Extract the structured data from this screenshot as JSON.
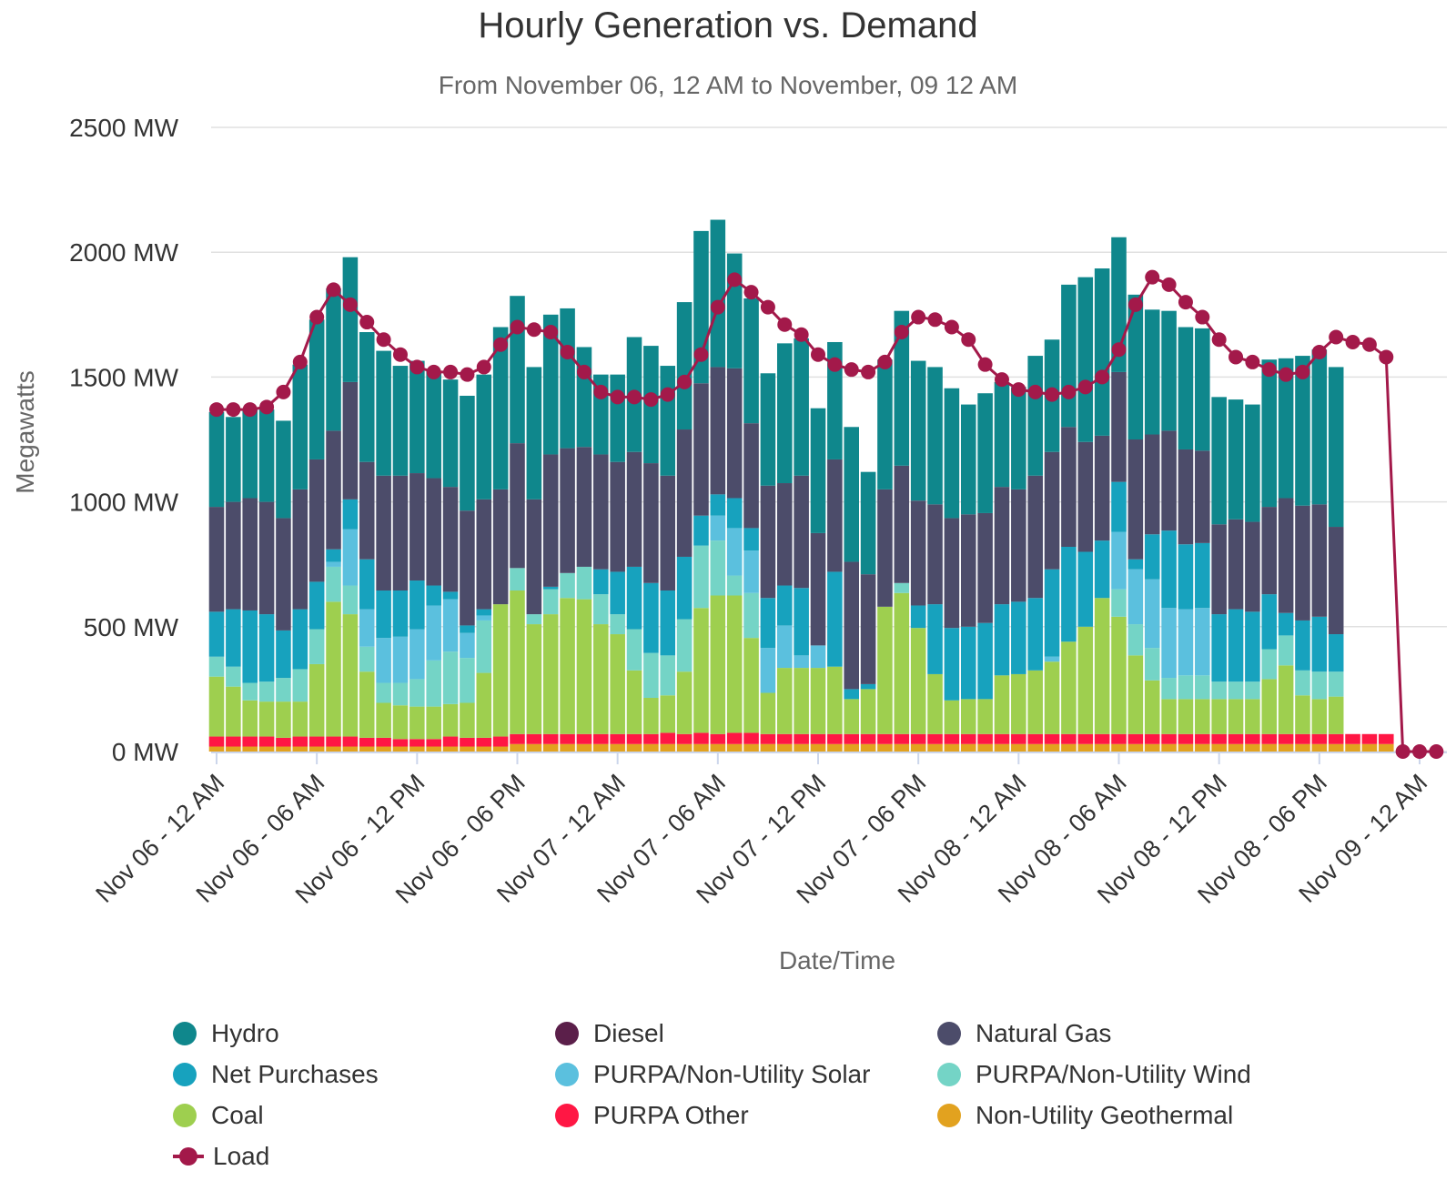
{
  "chart_data": {
    "type": "bar",
    "title": "Hourly Generation vs. Demand",
    "subtitle": "From November 06, 12 AM to November, 09 12 AM",
    "xlabel": "Date/Time",
    "ylabel": "Megawatts",
    "ylim": [
      0,
      2500
    ],
    "y_ticks": [
      "0 MW",
      "500 MW",
      "1000 MW",
      "1500 MW",
      "2000 MW",
      "2500 MW"
    ],
    "y_tick_values": [
      0,
      500,
      1000,
      1500,
      2000,
      2500
    ],
    "x_ticks": [
      "Nov 06 - 12 AM",
      "Nov 06 - 06 AM",
      "Nov 06 - 12 PM",
      "Nov 06 - 06 PM",
      "Nov 07 - 12 AM",
      "Nov 07 - 06 AM",
      "Nov 07 - 12 PM",
      "Nov 07 - 06 PM",
      "Nov 08 - 12 AM",
      "Nov 08 - 06 AM",
      "Nov 08 - 12 PM",
      "Nov 08 - 06 PM",
      "Nov 09 - 12 AM"
    ],
    "x_tick_hours": [
      0,
      6,
      12,
      18,
      24,
      30,
      36,
      42,
      48,
      54,
      60,
      66,
      72
    ],
    "grid": true,
    "legend_position": "bottom",
    "stacked": true,
    "series": [
      {
        "name": "Non-Utility Geothermal",
        "color": "#e2a21f",
        "values": [
          20,
          20,
          20,
          20,
          20,
          20,
          20,
          20,
          20,
          20,
          20,
          20,
          20,
          20,
          20,
          20,
          20,
          20,
          30,
          30,
          30,
          30,
          30,
          30,
          30,
          30,
          30,
          30,
          30,
          30,
          30,
          30,
          30,
          30,
          30,
          30,
          30,
          30,
          30,
          30,
          30,
          30,
          30,
          30,
          30,
          30,
          30,
          30,
          30,
          30,
          30,
          30,
          30,
          30,
          30,
          30,
          30,
          30,
          30,
          30,
          30,
          30,
          30,
          30,
          30,
          30,
          30,
          30,
          30,
          30,
          30
        ]
      },
      {
        "name": "PURPA Other",
        "color": "#ff1744",
        "values": [
          40,
          40,
          40,
          40,
          35,
          40,
          40,
          40,
          40,
          35,
          35,
          30,
          30,
          30,
          40,
          35,
          35,
          40,
          40,
          40,
          40,
          40,
          40,
          40,
          40,
          40,
          40,
          45,
          40,
          45,
          40,
          45,
          45,
          40,
          40,
          40,
          40,
          40,
          40,
          40,
          40,
          40,
          40,
          40,
          40,
          40,
          40,
          40,
          40,
          40,
          40,
          40,
          40,
          40,
          40,
          40,
          40,
          40,
          40,
          40,
          40,
          40,
          40,
          40,
          40,
          40,
          40,
          40,
          40,
          40,
          40
        ]
      },
      {
        "name": "Coal",
        "color": "#9ecf4f",
        "values": [
          240,
          200,
          145,
          140,
          145,
          140,
          290,
          540,
          490,
          265,
          140,
          135,
          130,
          130,
          130,
          140,
          260,
          530,
          575,
          440,
          480,
          545,
          540,
          440,
          400,
          255,
          145,
          150,
          250,
          500,
          555,
          550,
          380,
          165,
          265,
          265,
          265,
          270,
          140,
          180,
          510,
          565,
          425,
          240,
          135,
          140,
          140,
          235,
          240,
          255,
          290,
          370,
          430,
          545,
          470,
          315,
          215,
          140,
          140,
          140,
          140,
          140,
          140,
          220,
          275,
          155,
          140,
          150
        ]
      },
      {
        "name": "PURPA/Non-Utility Wind",
        "color": "#74d4c6",
        "values": [
          80,
          80,
          70,
          80,
          95,
          130,
          140,
          140,
          115,
          100,
          80,
          90,
          110,
          185,
          210,
          180,
          210,
          0,
          90,
          40,
          100,
          100,
          130,
          120,
          80,
          165,
          180,
          160,
          210,
          250,
          220,
          80,
          180,
          0,
          0,
          0,
          0,
          0,
          0,
          0,
          0,
          40,
          0,
          0,
          0,
          0,
          0,
          0,
          0,
          0,
          0,
          0,
          0,
          0,
          110,
          125,
          130,
          85,
          95,
          95,
          70,
          70,
          70,
          120,
          120,
          100,
          110,
          100
        ]
      },
      {
        "name": "PURPA/Non-Utility Solar",
        "color": "#5bc0de",
        "values": [
          0,
          0,
          0,
          0,
          0,
          0,
          0,
          20,
          225,
          150,
          180,
          185,
          200,
          220,
          210,
          100,
          20,
          0,
          0,
          0,
          0,
          0,
          0,
          0,
          0,
          0,
          0,
          0,
          0,
          0,
          100,
          190,
          170,
          180,
          170,
          50,
          90,
          0,
          0,
          0,
          0,
          0,
          0,
          0,
          0,
          0,
          0,
          0,
          0,
          0,
          20,
          0,
          0,
          0,
          230,
          220,
          275,
          280,
          265,
          270,
          0,
          0,
          0,
          0,
          0,
          0,
          0,
          0
        ]
      },
      {
        "name": "Net Purchases",
        "color": "#17a2be",
        "values": [
          180,
          230,
          290,
          270,
          190,
          240,
          190,
          50,
          120,
          200,
          190,
          185,
          195,
          80,
          30,
          30,
          25,
          0,
          0,
          0,
          10,
          0,
          0,
          100,
          170,
          250,
          280,
          260,
          250,
          120,
          85,
          120,
          90,
          200,
          160,
          270,
          0,
          380,
          40,
          20,
          0,
          0,
          90,
          280,
          290,
          290,
          305,
          285,
          290,
          290,
          350,
          380,
          300,
          230,
          200,
          40,
          180,
          310,
          260,
          260,
          270,
          290,
          280,
          220,
          90,
          200,
          220,
          150
        ]
      },
      {
        "name": "Diesel",
        "color": "#5b1f4a",
        "values": [
          0,
          0,
          0,
          0,
          0,
          0,
          0,
          0,
          0,
          0,
          0,
          0,
          0,
          0,
          0,
          0,
          0,
          0,
          0,
          0,
          0,
          0,
          0,
          0,
          0,
          0,
          0,
          0,
          0,
          0,
          0,
          0,
          0,
          0,
          0,
          0,
          0,
          0,
          0,
          0,
          0,
          0,
          0,
          0,
          0,
          0,
          0,
          0,
          0,
          0,
          0,
          0,
          0,
          0,
          0,
          0,
          0,
          0,
          0,
          0,
          0,
          0,
          0,
          0,
          0,
          0,
          0,
          0
        ]
      },
      {
        "name": "Natural Gas",
        "color": "#4c4c6a",
        "values": [
          420,
          430,
          450,
          450,
          450,
          480,
          490,
          475,
          470,
          390,
          460,
          460,
          430,
          430,
          420,
          460,
          440,
          460,
          500,
          460,
          530,
          500,
          480,
          460,
          440,
          460,
          480,
          460,
          510,
          530,
          510,
          520,
          420,
          450,
          410,
          450,
          450,
          450,
          510,
          440,
          470,
          470,
          420,
          400,
          440,
          450,
          440,
          470,
          450,
          490,
          470,
          480,
          440,
          420,
          440,
          480,
          400,
          400,
          380,
          370,
          360,
          360,
          360,
          350,
          460,
          460,
          450,
          430
        ]
      },
      {
        "name": "Hydro",
        "color": "#0f878c",
        "values": [
          380,
          340,
          360,
          370,
          390,
          500,
          560,
          570,
          500,
          520,
          500,
          440,
          450,
          430,
          430,
          460,
          500,
          650,
          590,
          530,
          560,
          560,
          400,
          320,
          350,
          460,
          470,
          440,
          510,
          610,
          590,
          460,
          500,
          450,
          560,
          550,
          500,
          470,
          540,
          410,
          520,
          620,
          560,
          550,
          520,
          440,
          480,
          420,
          410,
          480,
          450,
          570,
          660,
          670,
          540,
          580,
          500,
          480,
          490,
          490,
          510,
          480,
          470,
          590,
          560,
          600,
          620,
          640
        ]
      }
    ],
    "load": {
      "name": "Load",
      "color": "#a3194a",
      "values": [
        1370,
        1370,
        1370,
        1380,
        1440,
        1560,
        1740,
        1850,
        1790,
        1720,
        1650,
        1590,
        1540,
        1520,
        1520,
        1510,
        1540,
        1630,
        1700,
        1690,
        1680,
        1600,
        1520,
        1440,
        1420,
        1420,
        1410,
        1430,
        1480,
        1590,
        1780,
        1890,
        1840,
        1780,
        1710,
        1670,
        1590,
        1550,
        1530,
        1520,
        1560,
        1680,
        1740,
        1730,
        1700,
        1650,
        1550,
        1490,
        1450,
        1440,
        1430,
        1440,
        1460,
        1500,
        1610,
        1790,
        1900,
        1870,
        1800,
        1740,
        1650,
        1580,
        1560,
        1530,
        1510,
        1520,
        1600,
        1660,
        1640,
        1630,
        1580,
        0,
        0,
        0
      ]
    }
  },
  "legend": {
    "items": [
      {
        "label": "Hydro",
        "color": "#0f878c"
      },
      {
        "label": "Diesel",
        "color": "#5b1f4a"
      },
      {
        "label": "Natural Gas",
        "color": "#4c4c6a"
      },
      {
        "label": "Net Purchases",
        "color": "#17a2be"
      },
      {
        "label": "PURPA/Non-Utility Solar",
        "color": "#5bc0de"
      },
      {
        "label": "PURPA/Non-Utility Wind",
        "color": "#74d4c6"
      },
      {
        "label": "Coal",
        "color": "#9ecf4f"
      },
      {
        "label": "PURPA Other",
        "color": "#ff1744"
      },
      {
        "label": "Non-Utility Geothermal",
        "color": "#e2a21f"
      },
      {
        "label": "Load",
        "color": "#a3194a"
      }
    ]
  }
}
